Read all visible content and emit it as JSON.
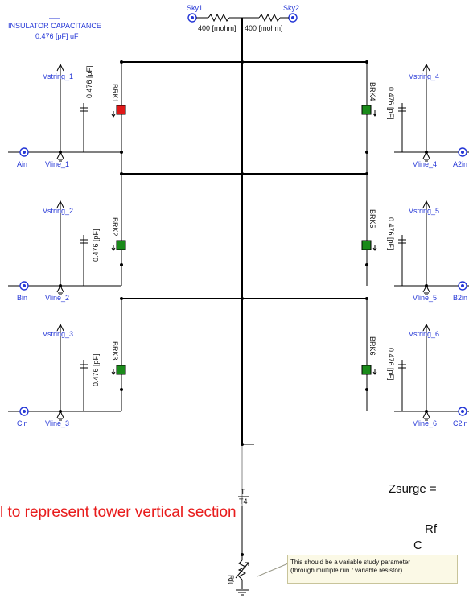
{
  "header": {
    "title": "INSULATOR CAPACITANCE",
    "value": "0.476 [pF] uF"
  },
  "sky": {
    "left_label": "Sky1",
    "right_label": "Sky2",
    "res_left": "400 [mohm]",
    "res_right": "400 [mohm]"
  },
  "left_branches": [
    {
      "string": "Vstring_1",
      "line": "Vline_1",
      "input": "Ain",
      "cap": "0.476 [pF]",
      "breaker": "BRK1",
      "breaker_state": "red"
    },
    {
      "string": "Vstring_2",
      "line": "Vline_2",
      "input": "Bin",
      "cap": "0.476 [pF]",
      "breaker": "BRK2",
      "breaker_state": "green"
    },
    {
      "string": "Vstring_3",
      "line": "Vline_3",
      "input": "Cin",
      "cap": "0.476 [pF]",
      "breaker": "BRK3",
      "breaker_state": "green"
    }
  ],
  "right_branches": [
    {
      "string": "Vstring_4",
      "line": "Vline_4",
      "input": "A2in",
      "cap": "0.476 [pF]",
      "breaker": "BRK4",
      "breaker_state": "green"
    },
    {
      "string": "Vstring_5",
      "line": "Vline_5",
      "input": "B2in",
      "cap": "0.476 [pF]",
      "breaker": "BRK5",
      "breaker_state": "green"
    },
    {
      "string": "Vstring_6",
      "line": "Vline_6",
      "input": "C2in",
      "cap": "0.476 [pF]",
      "breaker": "BRK6",
      "breaker_state": "green"
    }
  ],
  "tower": {
    "t_label": "T",
    "t4_label": "T4",
    "rft_label": "Rft"
  },
  "annotations": {
    "red_note": "l to represent tower vertical section",
    "zsurge": "Zsurge =",
    "rf": "Rf",
    "c": "C",
    "tooltip_line1": "This should be a variable study parameter",
    "tooltip_line2": "(through multiple run / variable resistor)"
  },
  "colors": {
    "label_blue": "#2436d6",
    "breaker_closed": "#1a8a1a",
    "breaker_open": "#e01818",
    "note_red": "#e81c1c"
  }
}
